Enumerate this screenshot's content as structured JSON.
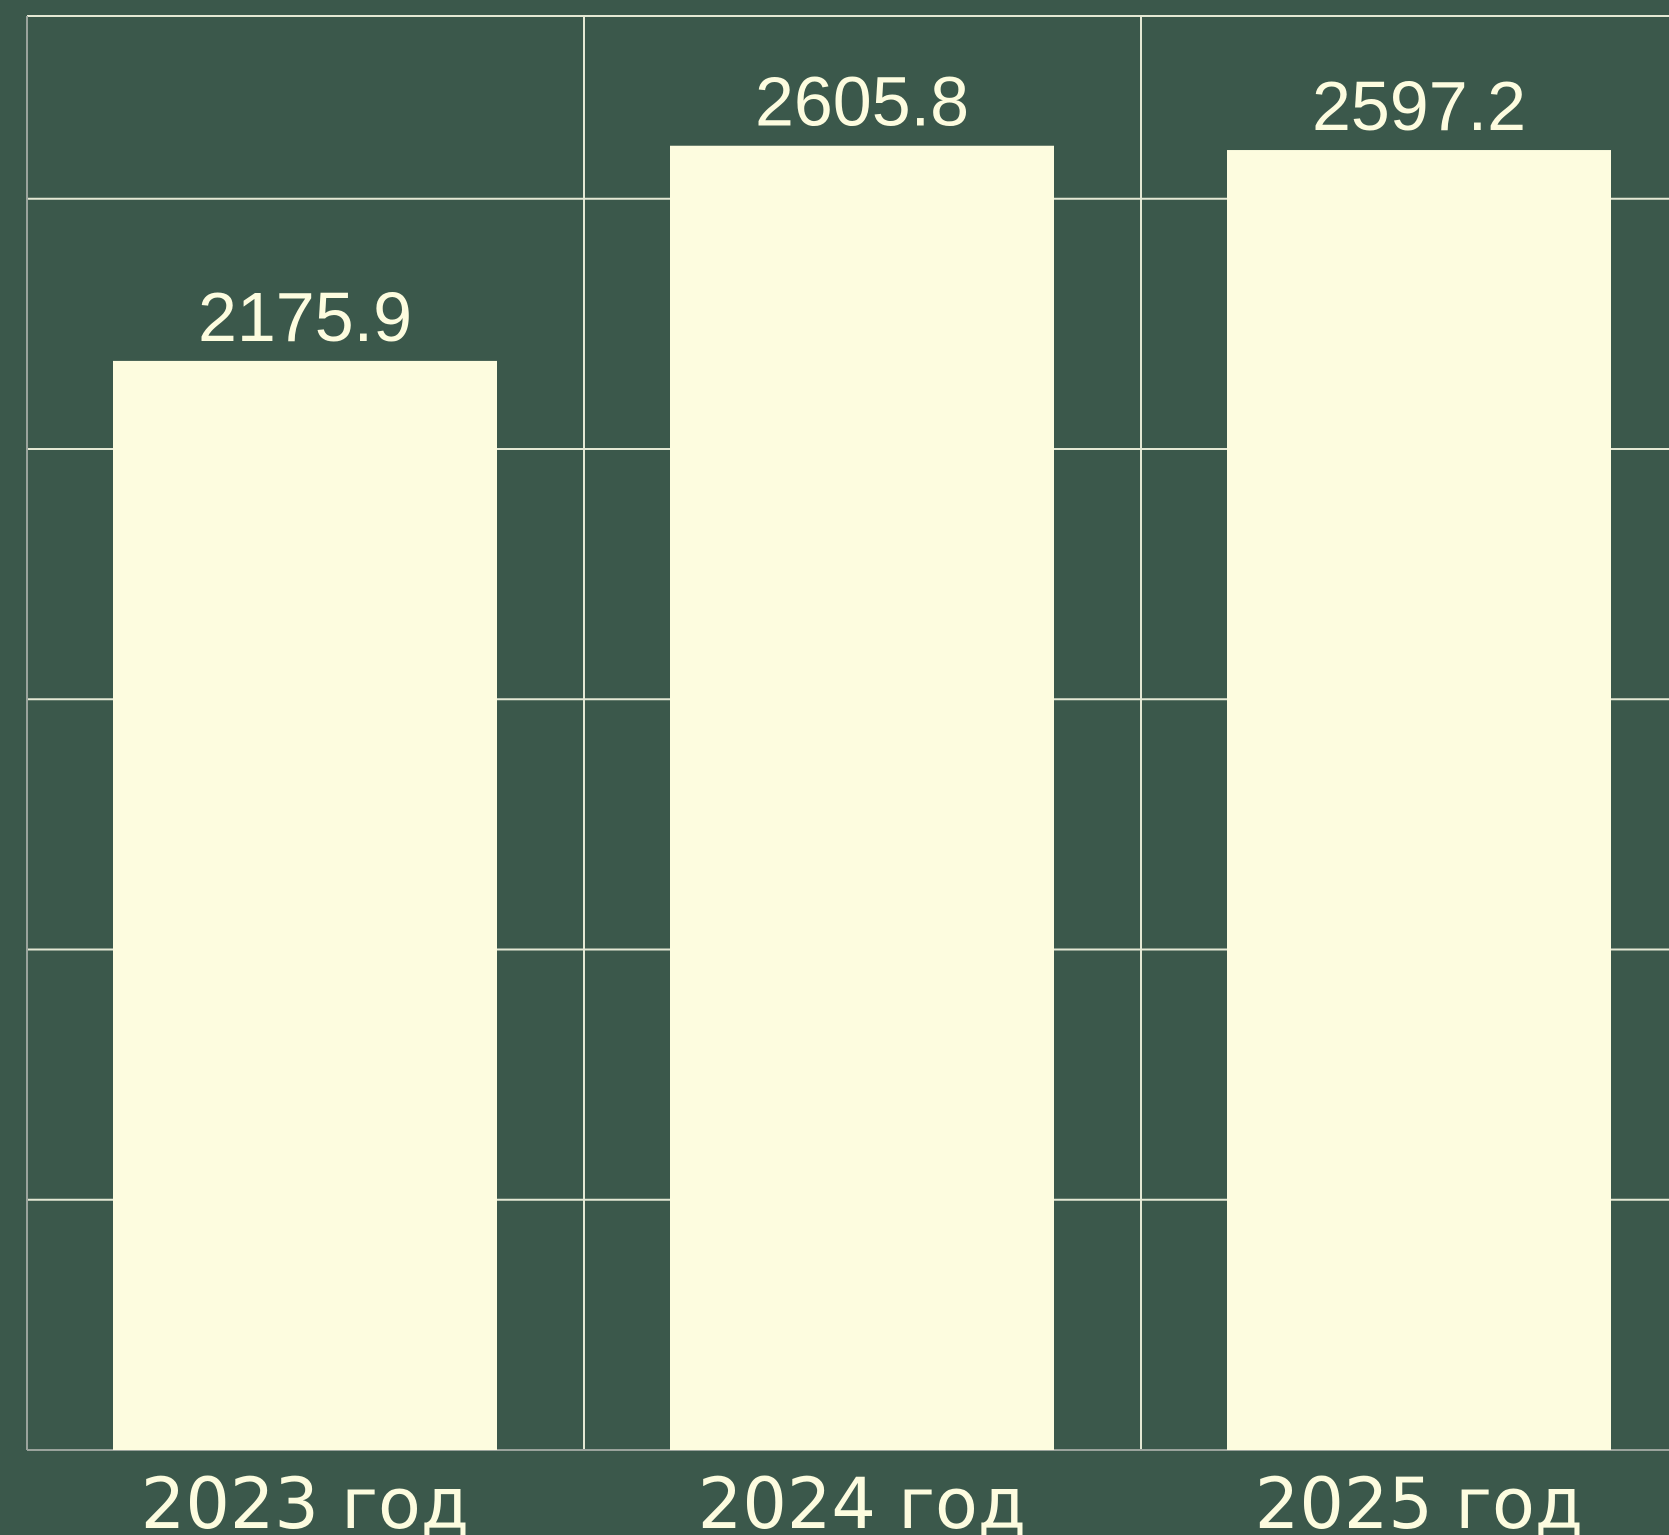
{
  "chart_data": {
    "type": "bar",
    "categories": [
      "2023 год",
      "2024 год",
      "2025 год"
    ],
    "values": [
      2175.9,
      2605.8,
      2597.2
    ],
    "value_labels": [
      "2175.9",
      "2605.8",
      "2597.2"
    ],
    "title": "",
    "xlabel": "",
    "ylabel": "",
    "ylim": [
      0,
      2865
    ],
    "y_grid_step": 500,
    "grid": true,
    "legend": "none",
    "colors": {
      "background": "#3b584b",
      "bar": "#fdfcdf",
      "grid": "#e4e8d4",
      "text": "#fdfcdf"
    }
  }
}
